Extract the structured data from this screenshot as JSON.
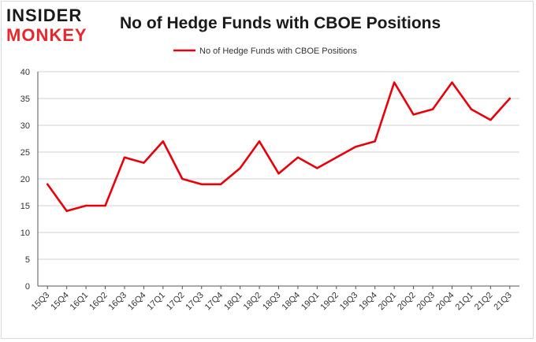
{
  "logo": {
    "line1": "INSIDER",
    "line2": "MONKEY"
  },
  "colors": {
    "series": "#e8000b",
    "grid": "#d0d0d0",
    "axis": "#555555",
    "logo_red": "#e8262b"
  },
  "chart_data": {
    "type": "line",
    "title": "No of Hedge Funds with CBOE Positions",
    "xlabel": "",
    "ylabel": "",
    "ylim": [
      0,
      40
    ],
    "yticks": [
      0,
      5,
      10,
      15,
      20,
      25,
      30,
      35,
      40
    ],
    "grid": true,
    "legend_position": "top-center",
    "categories": [
      "15Q3",
      "15Q4",
      "16Q1",
      "16Q2",
      "16Q3",
      "16Q4",
      "17Q1",
      "17Q2",
      "17Q3",
      "17Q4",
      "18Q1",
      "18Q2",
      "18Q3",
      "18Q4",
      "19Q1",
      "19Q2",
      "19Q3",
      "19Q4",
      "20Q1",
      "20Q2",
      "20Q3",
      "20Q4",
      "21Q1",
      "21Q2",
      "21Q3"
    ],
    "series": [
      {
        "name": "No of Hedge Funds with CBOE Positions",
        "values": [
          19,
          14,
          15,
          15,
          24,
          23,
          27,
          20,
          19,
          19,
          22,
          27,
          21,
          24,
          22,
          24,
          26,
          27,
          38,
          32,
          33,
          38,
          33,
          31,
          35
        ]
      }
    ]
  }
}
